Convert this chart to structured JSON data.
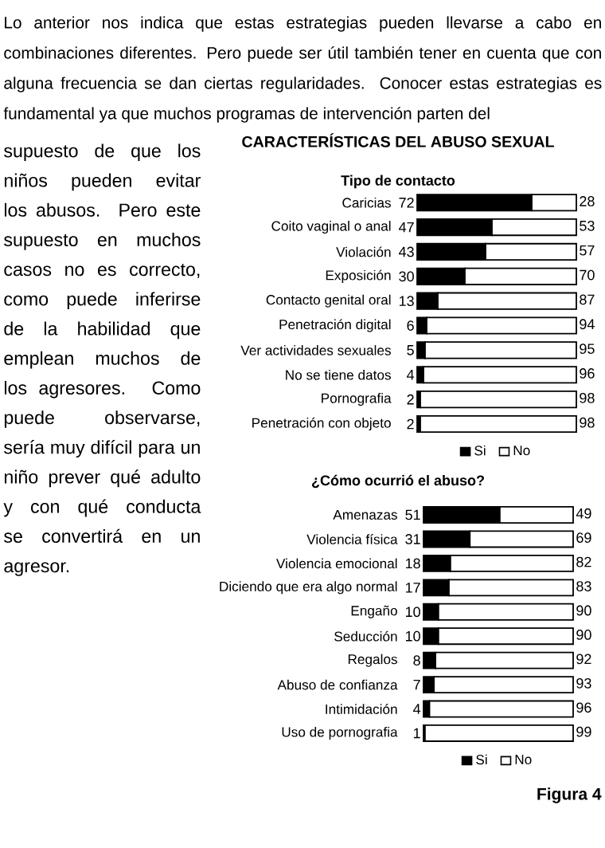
{
  "chart_data": [
    {
      "type": "bar",
      "orientation": "horizontal",
      "title": "CARACTERÍSTICAS DEL ABUSO SEXUAL",
      "subtitle": "Tipo de contacto",
      "categories": [
        "Caricias",
        "Coito vaginal o anal",
        "Violación",
        "Exposición",
        "Contacto genital oral",
        "Penetración digital",
        "Ver actividades sexuales",
        "No se tiene datos",
        "Pornografia",
        "Penetración con objeto"
      ],
      "series": [
        {
          "name": "Si",
          "color": "#000000",
          "values": [
            72,
            47,
            43,
            30,
            13,
            6,
            5,
            4,
            2,
            2
          ]
        },
        {
          "name": "No",
          "color": "#ffffff",
          "values": [
            28,
            53,
            57,
            70,
            87,
            94,
            95,
            96,
            98,
            98
          ]
        }
      ],
      "stacked": true,
      "xlim": [
        0,
        100
      ],
      "data_labels": true,
      "legend": "bottom",
      "tick_labels": "y",
      "annotations": [
        "Lo anterior nos indica que estas estrategias pueden llevarse a cabo en combinaciones diferentes. Pero puede ser útil también tener en cuenta que con alguna frecuencia se dan ciertas regularidades. Conocer estas estrategias es fundamental ya que muchos programas de intervención parten del",
        "supuesto de que los niños pueden evitar los abusos. Pero este supuesto en muchos casos no es correcto, como puede inferirse de la habilidad que emplean muchos de los agresores. Como puede observarse, sería muy difícil para un niño prever qué adulto y con qué conducta se convertirá en un agresor."
      ]
    },
    {
      "type": "bar",
      "orientation": "horizontal",
      "title": "¿Cómo ocurrió el abuso?",
      "categories": [
        "Amenazas",
        "Violencia física",
        "Violencia emocional",
        "Diciendo que era algo normal",
        "Engaño",
        "Seducción",
        "Regalos",
        "Abuso de confianza",
        "Intimidación",
        "Uso de pornografia"
      ],
      "series": [
        {
          "name": "Si",
          "color": "#000000",
          "values": [
            51,
            31,
            18,
            17,
            10,
            10,
            8,
            7,
            4,
            1
          ]
        },
        {
          "name": "No",
          "color": "#ffffff",
          "values": [
            49,
            69,
            82,
            83,
            90,
            90,
            92,
            93,
            96,
            99
          ]
        }
      ],
      "stacked": true,
      "xlim": [
        0,
        100
      ],
      "data_labels": true,
      "legend": "bottom",
      "tick_labels": "y",
      "annotations": [
        "Figura 4"
      ]
    }
  ]
}
